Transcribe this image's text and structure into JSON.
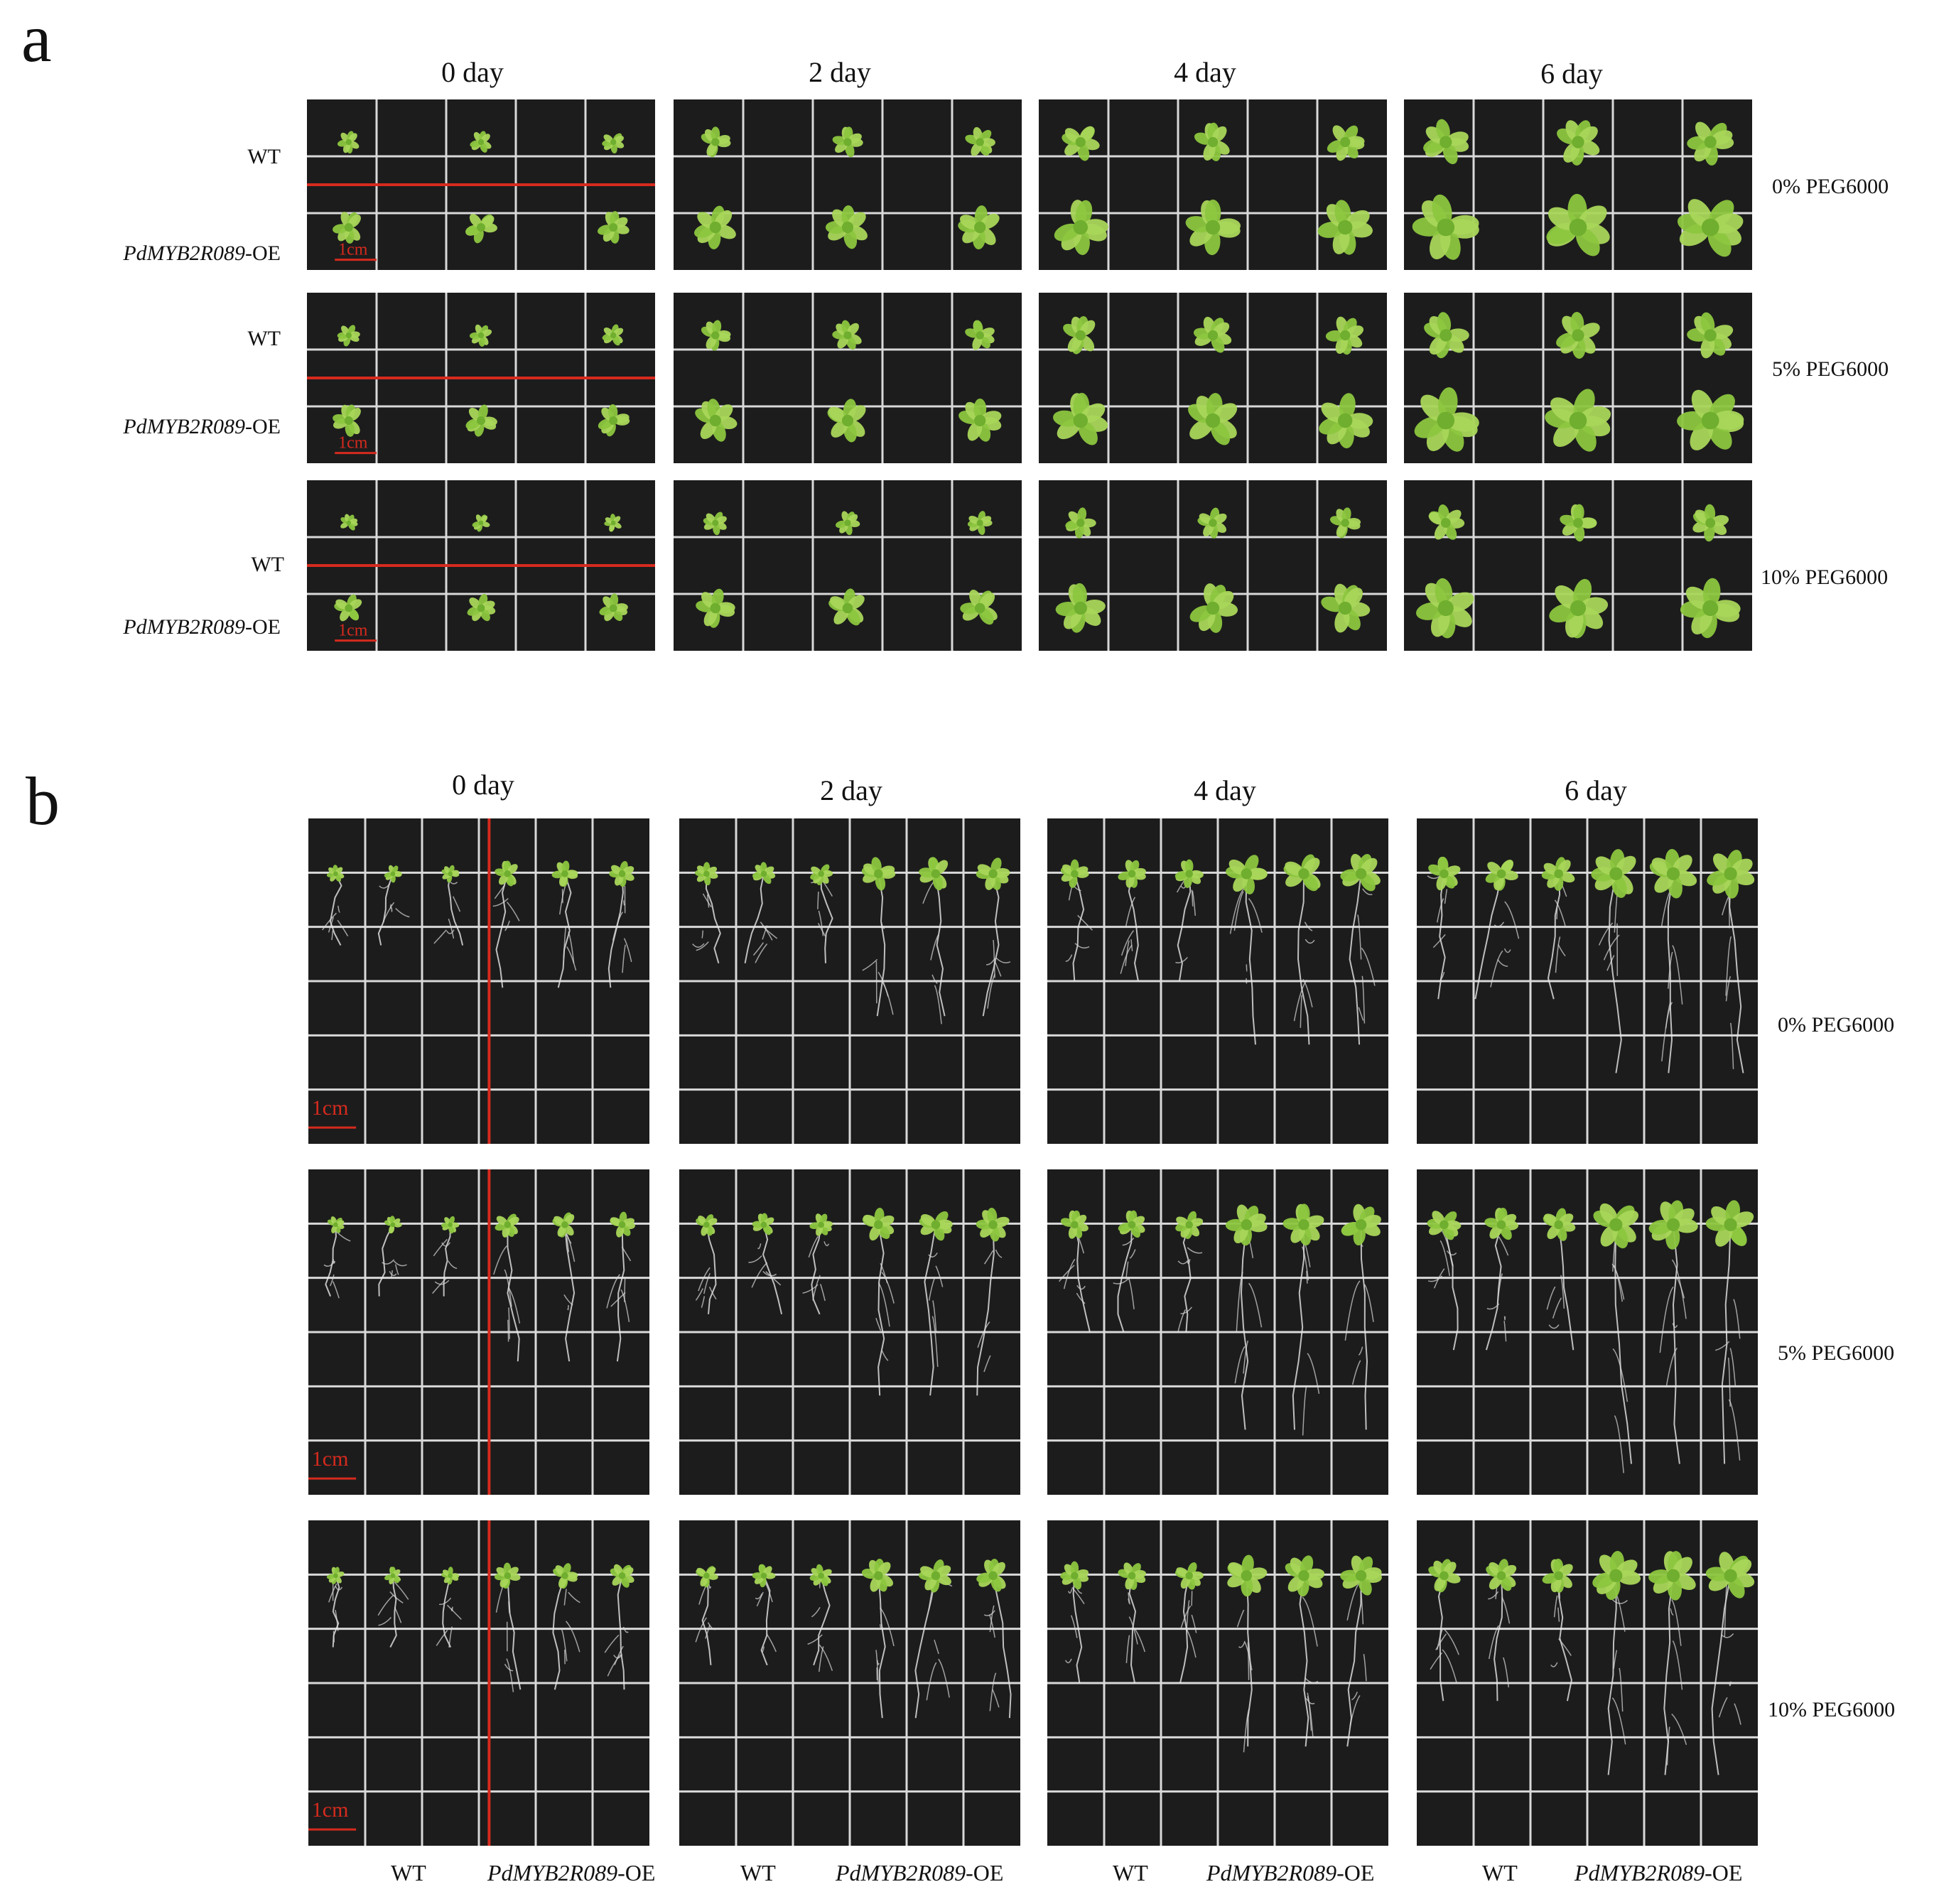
{
  "panel_a": {
    "letter": "a",
    "days": [
      "0 day",
      "2 day",
      "4 day",
      "6 day"
    ],
    "row_labels": {
      "wt": "WT",
      "oe_gene": "PdMYB2R089",
      "oe_suffix": "-OE"
    },
    "conditions": [
      "0% PEG6000",
      "5% PEG6000",
      "10% PEG6000"
    ],
    "scale_bar": "1cm"
  },
  "panel_b": {
    "letter": "b",
    "days": [
      "0 day",
      "2 day",
      "4 day",
      "6 day"
    ],
    "conditions": [
      "0% PEG6000",
      "5% PEG6000",
      "10% PEG6000"
    ],
    "scale_bar": "1cm",
    "bottom_labels": {
      "wt": "WT",
      "oe_gene": "PdMYB2R089",
      "oe_suffix": "-OE"
    }
  },
  "colors": {
    "plate_background": "#1c1c1c",
    "grid_lines": "#d9d9d9",
    "seedling_green": "#8cc63f",
    "divider_red": "#d62a1e"
  }
}
